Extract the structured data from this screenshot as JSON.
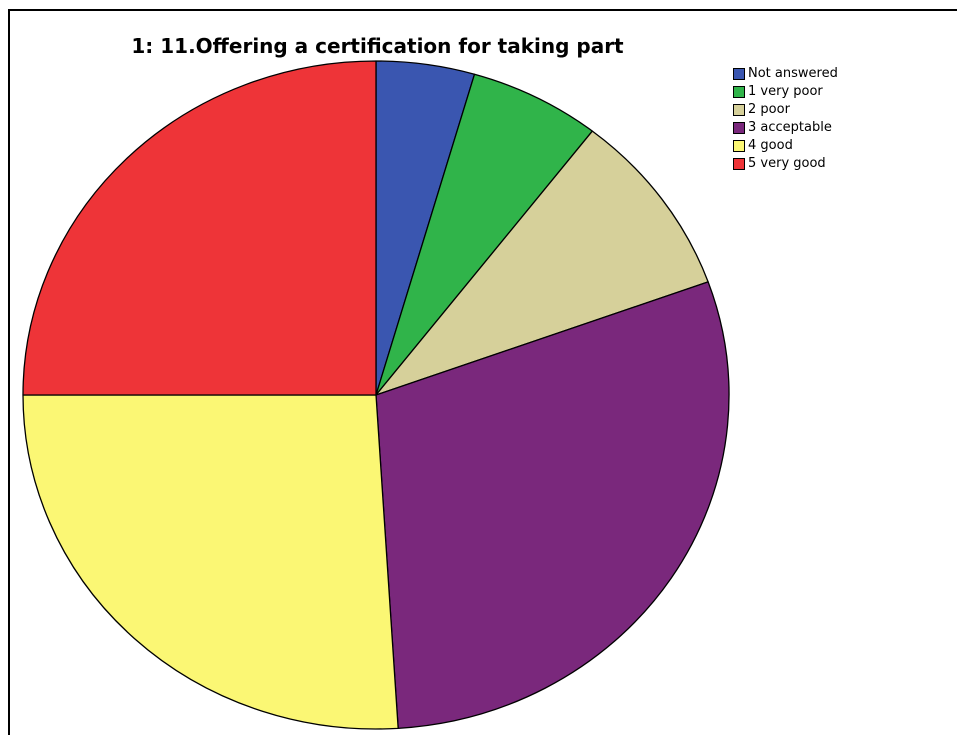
{
  "chart_data": {
    "type": "pie",
    "title": "1: 11.Offering a certification for taking part",
    "legend_position": "top-right",
    "slices": [
      {
        "label": "Not answered",
        "value": 4.5,
        "color": "#3a56b0"
      },
      {
        "label": "1 very poor",
        "value": 6.0,
        "color": "#30b44a"
      },
      {
        "label": "2 poor",
        "value": 9.0,
        "color": "#d6d09a"
      },
      {
        "label": "3 acceptable",
        "value": 29.5,
        "color": "#7a287c"
      },
      {
        "label": "4 good",
        "value": 26.0,
        "color": "#fbf774"
      },
      {
        "label": "5 very good",
        "value": 25.0,
        "color": "#ee3438"
      }
    ]
  }
}
